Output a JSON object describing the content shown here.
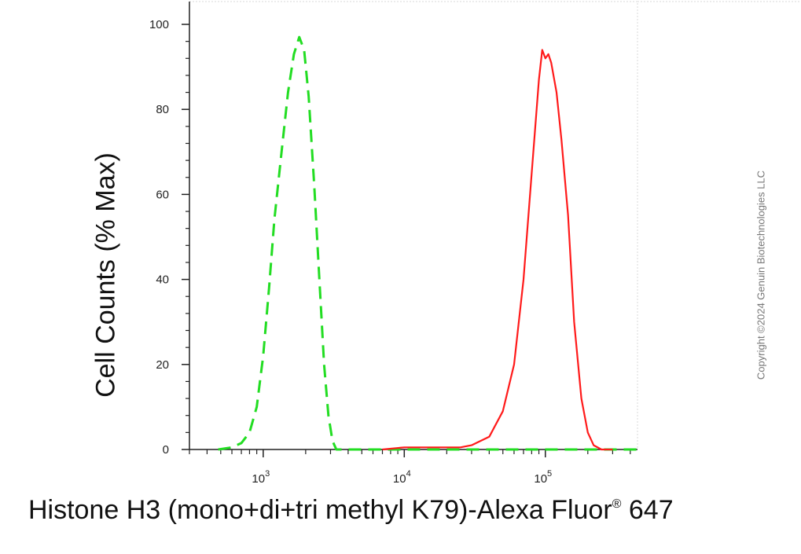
{
  "chart_data": {
    "type": "line",
    "xscale": "log",
    "xlim": [
      300,
      450000
    ],
    "ylim": [
      0,
      100
    ],
    "xlabel": "Histone H3 (mono+di+tri methyl K79)-Alexa Fluor",
    "xlabel_superscript": "®",
    "xlabel_suffix": " 647",
    "ylabel": "Cell Counts (% Max)",
    "y_ticks": [
      0,
      20,
      40,
      60,
      80,
      100
    ],
    "y_tick_labels": [
      "0",
      "20",
      "40",
      "60",
      "80",
      "100"
    ],
    "x_ticks": [
      1000,
      10000,
      100000
    ],
    "x_tick_labels": [
      {
        "base": "10",
        "exp": "3"
      },
      {
        "base": "10",
        "exp": "4"
      },
      {
        "base": "10",
        "exp": "5"
      }
    ],
    "grid": false,
    "legend": "none",
    "series": [
      {
        "color": "#22dd22",
        "style": "dashed",
        "x": [
          480,
          600,
          700,
          800,
          900,
          1000,
          1100,
          1200,
          1350,
          1500,
          1650,
          1800,
          1950,
          2100,
          2300,
          2500,
          2700,
          2900,
          3100,
          3300,
          4000,
          10000,
          30000,
          100000,
          300000,
          450000
        ],
        "y": [
          0,
          0.5,
          1.5,
          4,
          10,
          22,
          38,
          54,
          70,
          84,
          93,
          97,
          94,
          83,
          62,
          40,
          20,
          8,
          2,
          0,
          0,
          0,
          0,
          0,
          0,
          0
        ]
      },
      {
        "color": "#ff1a1a",
        "style": "solid",
        "x": [
          7000,
          10000,
          15000,
          20000,
          25000,
          30000,
          40000,
          50000,
          60000,
          70000,
          80000,
          90000,
          95000,
          100000,
          105000,
          110000,
          120000,
          130000,
          145000,
          160000,
          180000,
          200000,
          220000,
          250000,
          300000
        ],
        "y": [
          0,
          0.5,
          0.5,
          0.5,
          0.5,
          1,
          3,
          9,
          20,
          40,
          65,
          87,
          94,
          92,
          93,
          91,
          84,
          73,
          55,
          30,
          12,
          4,
          1,
          0,
          0
        ]
      }
    ]
  },
  "watermark": "Copyright ©2024 Genuin Biotechnologies LLC"
}
